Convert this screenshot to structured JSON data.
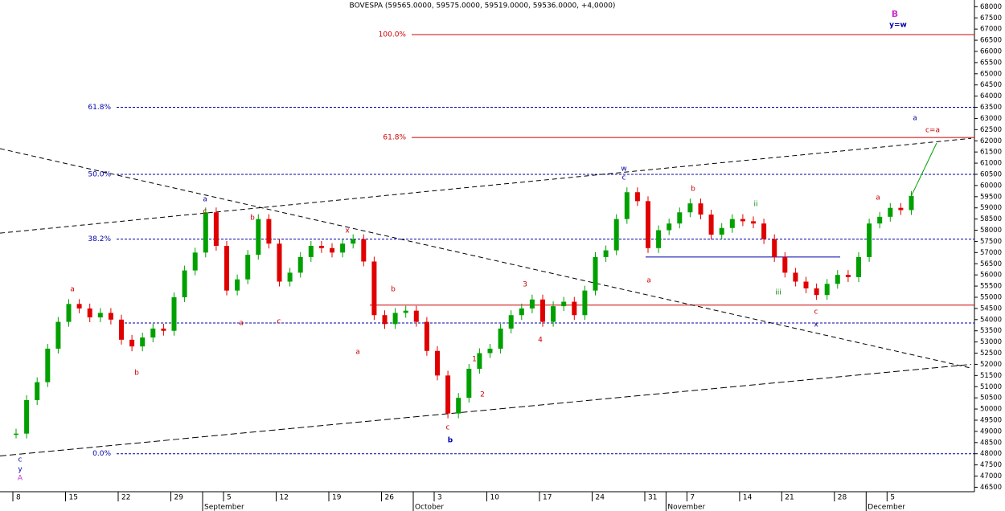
{
  "chart_data": {
    "type": "bar",
    "title": "BOVESPA (59565.0000, 59575.0000, 59519.0000, 59536.0000, +4,0000)",
    "categories": [
      "8",
      null,
      null,
      null,
      null,
      "15",
      null,
      null,
      null,
      null,
      "22",
      null,
      null,
      null,
      null,
      "29",
      null,
      null,
      null,
      null,
      "5",
      null,
      null,
      null,
      null,
      "12",
      null,
      null,
      null,
      null,
      "19",
      null,
      null,
      null,
      null,
      "26",
      null,
      null,
      null,
      null,
      "3",
      null,
      null,
      null,
      null,
      "10",
      null,
      null,
      null,
      null,
      "17",
      null,
      null,
      null,
      null,
      "24",
      null,
      null,
      null,
      null,
      "31",
      null,
      null,
      null,
      "7",
      null,
      null,
      null,
      null,
      "14",
      null,
      null,
      null,
      "21",
      null,
      null,
      null,
      null,
      "28",
      null,
      null,
      null,
      null,
      "5",
      null,
      null
    ],
    "months": [
      "September",
      "October",
      "November",
      "December"
    ],
    "series": [
      {
        "name": "BOVESPA",
        "up_color": "#00a000",
        "down_color": "#e00000",
        "values": [
          48900,
          50400,
          51200,
          52700,
          53900,
          54700,
          54500,
          54100,
          54300,
          54000,
          53100,
          52800,
          53200,
          53600,
          53500,
          55000,
          56200,
          57000,
          58800,
          57300,
          55300,
          55800,
          56900,
          58500,
          57400,
          55700,
          56100,
          56800,
          57300,
          57200,
          57000,
          57400,
          57600,
          56600,
          54200,
          53800,
          54300,
          54400,
          53900,
          52600,
          51500,
          49800,
          50500,
          51800,
          52500,
          52700,
          53600,
          54200,
          54500,
          54900,
          53900,
          54600,
          54800,
          54200,
          55300,
          56800,
          57100,
          58500,
          59700,
          59300,
          57200,
          58000,
          58300,
          58800,
          59200,
          58700,
          57800,
          58100,
          58500,
          58400,
          58300,
          57600,
          56800,
          56100,
          55700,
          55400,
          55100,
          55600,
          56000,
          55900,
          56800,
          58300,
          58600,
          59000,
          58900,
          59536
        ]
      }
    ],
    "ylim": [
      46300,
      68300
    ],
    "yticks": [
      46500,
      47000,
      47500,
      48000,
      48500,
      49000,
      49500,
      50000,
      50500,
      51000,
      51500,
      52000,
      52500,
      53000,
      53500,
      54000,
      54500,
      55000,
      55500,
      56000,
      56500,
      57000,
      57500,
      58000,
      58500,
      59000,
      59500,
      60000,
      60500,
      61000,
      61500,
      62000,
      62500,
      63000,
      63500,
      64000,
      64500,
      65000,
      65500,
      66000,
      66500,
      67000,
      67500,
      68000
    ],
    "levels": [
      {
        "label": "100.0%",
        "value": 66750,
        "color": "#cc0000"
      },
      {
        "label": "61.8%",
        "value": 62150,
        "color": "#cc0000"
      },
      {
        "label": "61.8%",
        "value": 63500,
        "color": "#0000aa"
      },
      {
        "label": "50.0%",
        "value": 60500,
        "color": "#0000aa"
      },
      {
        "label": "38.2%",
        "value": 57600,
        "color": "#0000aa"
      },
      {
        "label": "0.0%",
        "value": 48000,
        "color": "#0000aa"
      }
    ],
    "support_lines": [
      {
        "value": 54650,
        "color": "#cc0000"
      },
      {
        "value": 53850,
        "color": "#0000aa"
      },
      {
        "value": 56800,
        "color": "#0000aa"
      }
    ],
    "trendlines": [
      {
        "start": 61650,
        "end": 51830
      },
      {
        "start": 57870,
        "end": 62110
      },
      {
        "start": 47900,
        "end": 52000
      }
    ],
    "annotations": [
      "B",
      "y=w",
      "a",
      "c=a",
      "w",
      "c",
      "a",
      "c",
      "b",
      "x",
      "b",
      "a",
      "b",
      "a",
      "c",
      "a",
      "1",
      "2",
      "3",
      "4",
      "c",
      "b",
      "b",
      "a",
      "ii",
      "iii",
      "x",
      "c",
      "a",
      "c",
      "y",
      "A"
    ]
  }
}
